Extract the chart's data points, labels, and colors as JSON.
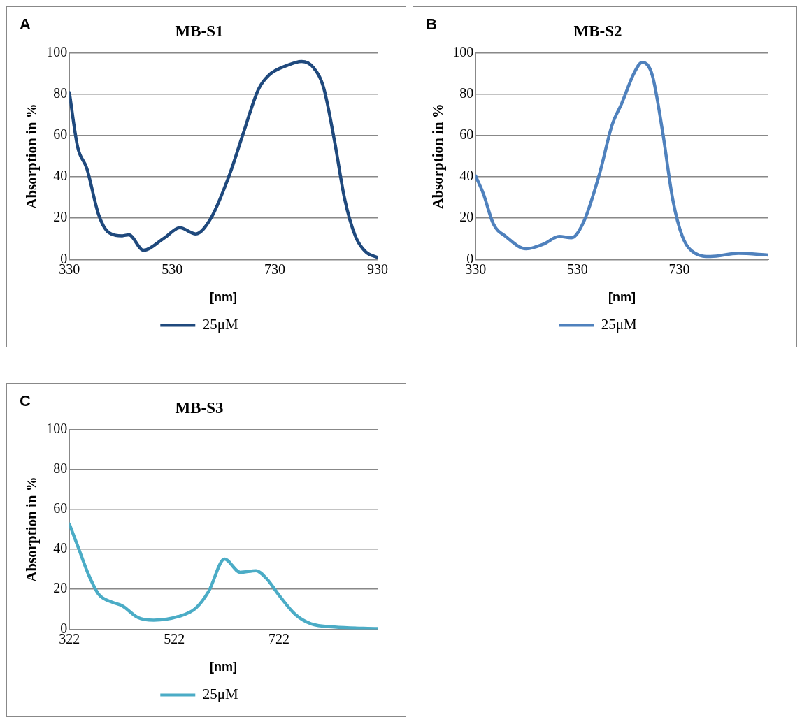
{
  "chart_data": [
    {
      "type": "line",
      "title": "MB-S1",
      "xlabel": "[nm]",
      "ylabel": "Absorption in %",
      "annotations": [
        "A"
      ],
      "legend": "bottom",
      "grid": "y",
      "marker": "none",
      "line_style": "solid",
      "xlim": [
        330,
        930
      ],
      "xticks": [
        330,
        530,
        730,
        930
      ],
      "ylim": [
        0,
        100
      ],
      "yticks": [
        0,
        20,
        40,
        60,
        80,
        100
      ],
      "series": [
        {
          "name": "25μM",
          "color": "#1f497d",
          "x": [
            330,
            346,
            364,
            387,
            407,
            433,
            446,
            474,
            515,
            545,
            576,
            606,
            642,
            667,
            698,
            718,
            754,
            782,
            805,
            825,
            846,
            866,
            887,
            907,
            930
          ],
          "values": [
            80.8,
            54.6,
            44.1,
            21.7,
            13.0,
            11.5,
            12.0,
            4.5,
            10.5,
            15.4,
            12.4,
            20.2,
            41.2,
            59.9,
            82.3,
            89.1,
            93.9,
            95.8,
            92.9,
            83.1,
            57.6,
            29.2,
            11.2,
            3.7,
            1.0
          ]
        }
      ]
    },
    {
      "type": "line",
      "title": "MB-S2",
      "xlabel": "[nm]",
      "ylabel": "Absorption in %",
      "annotations": [
        "B"
      ],
      "legend": "bottom",
      "grid": "y",
      "marker": "none",
      "line_style": "solid",
      "xlim": [
        330,
        905
      ],
      "xticks": [
        330,
        530,
        730
      ],
      "ylim": [
        0,
        100
      ],
      "yticks": [
        0,
        20,
        40,
        60,
        80,
        100
      ],
      "series": [
        {
          "name": "25μM",
          "color": "#4f81bd",
          "x": [
            330,
            345,
            365,
            389,
            429,
            464,
            494,
            518,
            543,
            573,
            598,
            617,
            642,
            657,
            677,
            697,
            717,
            736,
            761,
            791,
            846,
            905
          ],
          "values": [
            40.4,
            32.0,
            17.2,
            11.2,
            5.2,
            7.5,
            11.2,
            10.5,
            18.7,
            41.2,
            65.1,
            75.6,
            90.6,
            95.4,
            89.1,
            62.1,
            29.2,
            11.2,
            3.0,
            1.5,
            3.0,
            2.2
          ]
        }
      ]
    },
    {
      "type": "line",
      "title": "MB-S3",
      "xlabel": "[nm]",
      "ylabel": "Absorption in %",
      "annotations": [
        "C"
      ],
      "legend": "bottom",
      "grid": "y",
      "marker": "none",
      "line_style": "solid",
      "xlim": [
        322,
        910
      ],
      "xticks": [
        322,
        522,
        722
      ],
      "ylim": [
        0,
        100
      ],
      "yticks": [
        0,
        20,
        40,
        60,
        80,
        100
      ],
      "series": [
        {
          "name": "25μM",
          "color": "#4bacc6",
          "x": [
            322,
            340,
            358,
            378,
            403,
            423,
            453,
            483,
            533,
            563,
            588,
            618,
            648,
            678,
            698,
            723,
            753,
            783,
            828,
            910
          ],
          "values": [
            52.7,
            40.2,
            27.7,
            17.5,
            13.6,
            11.7,
            5.8,
            4.5,
            6.6,
            10.5,
            19.1,
            35.1,
            28.5,
            29.3,
            25.4,
            16.7,
            7.4,
            2.7,
            1.1,
            0.3
          ]
        }
      ]
    }
  ]
}
